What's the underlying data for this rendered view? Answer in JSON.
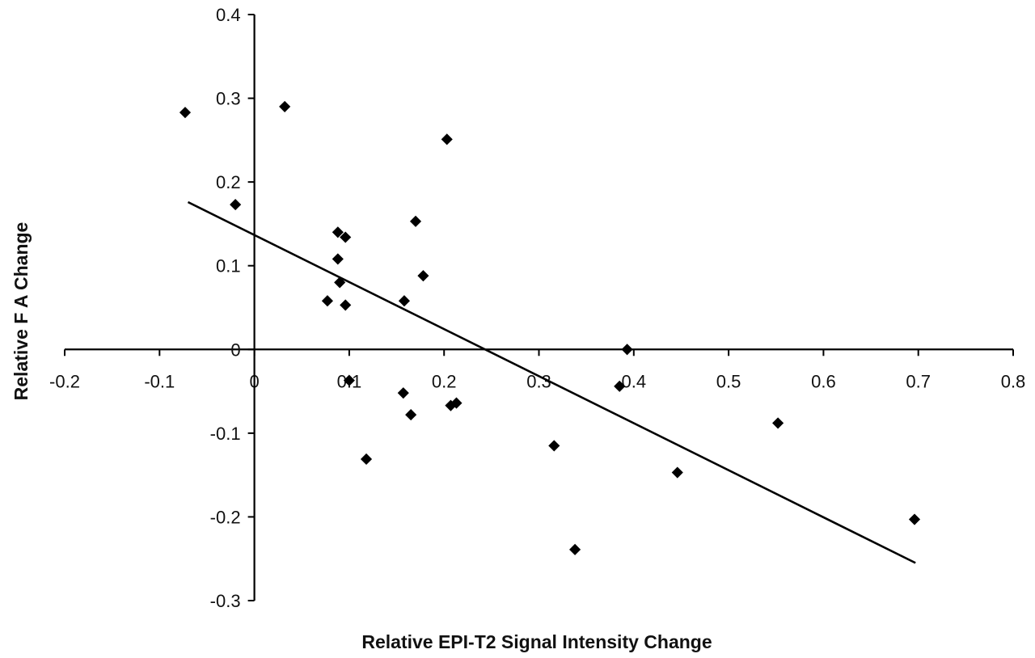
{
  "chart_data": {
    "type": "scatter",
    "title": "",
    "xlabel": "Relative EPI-T2 Signal Intensity Change",
    "ylabel": "Relative F A Change",
    "xlim": [
      -0.2,
      0.8
    ],
    "ylim": [
      -0.3,
      0.4
    ],
    "x_ticks": [
      "-0.2",
      "-0.1",
      "0",
      "0.1",
      "0.2",
      "0.3",
      "0.4",
      "0.5",
      "0.6",
      "0.7",
      "0.8"
    ],
    "y_ticks": [
      "0.4",
      "0.3",
      "0.2",
      "0.1",
      "0",
      "-0.1",
      "-0.2",
      "-0.3"
    ],
    "grid": false,
    "legend": "none",
    "marker": "diamond",
    "colors": {
      "points": "#000000",
      "axes": "#000000",
      "trend": "#000000"
    },
    "points": [
      {
        "x": -0.073,
        "y": 0.283
      },
      {
        "x": 0.032,
        "y": 0.29
      },
      {
        "x": 0.203,
        "y": 0.251
      },
      {
        "x": -0.02,
        "y": 0.173
      },
      {
        "x": 0.17,
        "y": 0.153
      },
      {
        "x": 0.088,
        "y": 0.14
      },
      {
        "x": 0.096,
        "y": 0.134
      },
      {
        "x": 0.088,
        "y": 0.108
      },
      {
        "x": 0.178,
        "y": 0.088
      },
      {
        "x": 0.09,
        "y": 0.08
      },
      {
        "x": 0.077,
        "y": 0.058
      },
      {
        "x": 0.158,
        "y": 0.058
      },
      {
        "x": 0.096,
        "y": 0.053
      },
      {
        "x": 0.393,
        "y": 0.0
      },
      {
        "x": 0.1,
        "y": -0.037
      },
      {
        "x": 0.385,
        "y": -0.044
      },
      {
        "x": 0.157,
        "y": -0.052
      },
      {
        "x": 0.213,
        "y": -0.064
      },
      {
        "x": 0.207,
        "y": -0.067
      },
      {
        "x": 0.165,
        "y": -0.078
      },
      {
        "x": 0.552,
        "y": -0.088
      },
      {
        "x": 0.316,
        "y": -0.115
      },
      {
        "x": 0.118,
        "y": -0.131
      },
      {
        "x": 0.446,
        "y": -0.147
      },
      {
        "x": 0.696,
        "y": -0.203
      },
      {
        "x": 0.338,
        "y": -0.239
      }
    ],
    "trendline": [
      {
        "x": -0.07,
        "y": 0.176
      },
      {
        "x": 0.697,
        "y": -0.255
      }
    ]
  }
}
